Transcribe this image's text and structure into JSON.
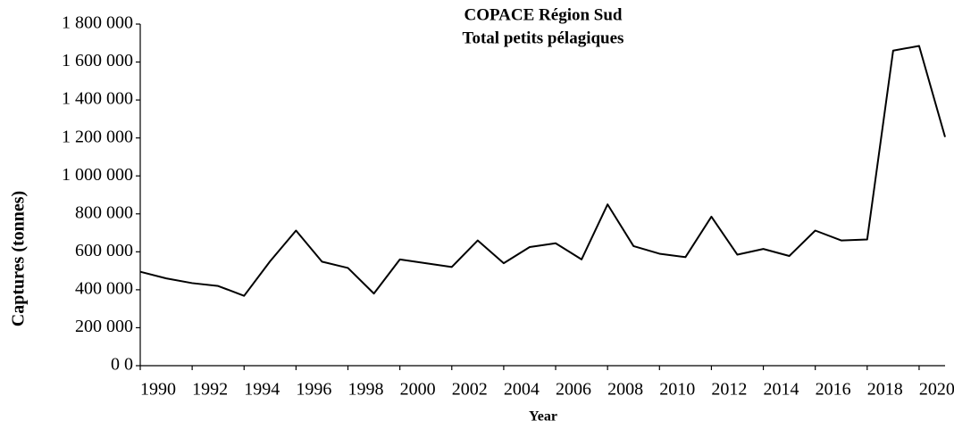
{
  "chart_data": {
    "type": "line",
    "title": [
      "COPACE Région Sud",
      "Total petits pélagiques"
    ],
    "x_label": "Year",
    "y_label": "Captures (tonnes)",
    "x": [
      1990,
      1991,
      1992,
      1993,
      1994,
      1995,
      1996,
      1997,
      1998,
      1999,
      2000,
      2001,
      2002,
      2003,
      2004,
      2005,
      2006,
      2007,
      2008,
      2009,
      2010,
      2011,
      2012,
      2013,
      2014,
      2015,
      2016,
      2017,
      2018,
      2019,
      2020,
      2021
    ],
    "series": [
      {
        "name": "Total petits pélagiques",
        "color": "#000000",
        "values": [
          495000,
          460000,
          435000,
          420000,
          368000,
          550000,
          712000,
          548000,
          515000,
          380000,
          560000,
          540000,
          520000,
          660000,
          540000,
          625000,
          645000,
          560000,
          850000,
          630000,
          590000,
          572000,
          785000,
          585000,
          615000,
          578000,
          712000,
          660000,
          665000,
          1660000,
          1685000,
          1205000
        ]
      }
    ],
    "xlim": [
      1990,
      2021
    ],
    "xticks": [
      1990,
      1992,
      1994,
      1996,
      1998,
      2000,
      2002,
      2004,
      2006,
      2008,
      2010,
      2012,
      2014,
      2016,
      2018,
      2020
    ],
    "ylim": [
      0,
      1800000
    ],
    "yticks": [
      {
        "value": 0,
        "label": "0 0"
      },
      {
        "value": 200000,
        "label": "200 000"
      },
      {
        "value": 400000,
        "label": "400 000"
      },
      {
        "value": 600000,
        "label": "600 000"
      },
      {
        "value": 800000,
        "label": "800 000"
      },
      {
        "value": 1000000,
        "label": "1 000 000"
      },
      {
        "value": 1200000,
        "label": "1 200 000"
      },
      {
        "value": 1400000,
        "label": "1 400 000"
      },
      {
        "value": 1600000,
        "label": "1 600 000"
      },
      {
        "value": 1800000,
        "label": "1 800 000"
      }
    ],
    "grid": false
  }
}
